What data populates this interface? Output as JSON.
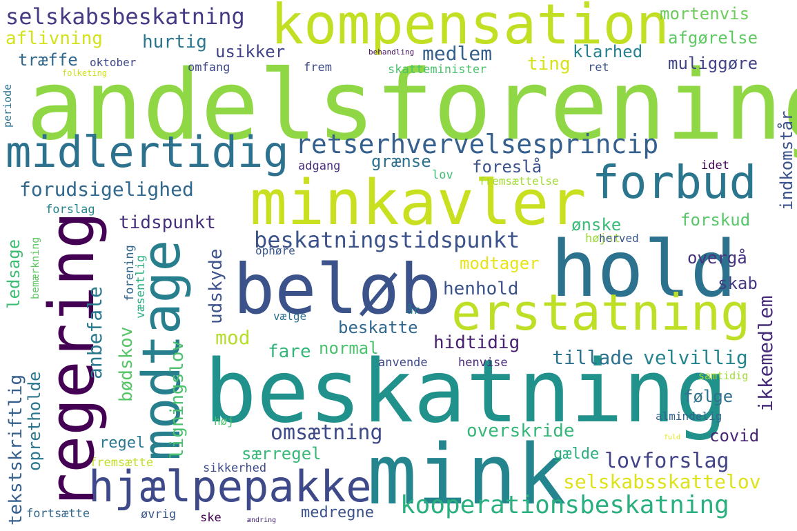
{
  "words": [
    {
      "text": "andelsforening",
      "color": "#8fd744"
    },
    {
      "text": "beskatning",
      "color": "#21918c"
    },
    {
      "text": "mink",
      "color": "#25858e"
    },
    {
      "text": "hold",
      "color": "#2c728e"
    },
    {
      "text": "beløb",
      "color": "#3b528b"
    },
    {
      "text": "minkavler",
      "color": "#c8e020"
    },
    {
      "text": "kompensation",
      "color": "#c2df23"
    },
    {
      "text": "erstatning",
      "color": "#bddf26"
    },
    {
      "text": "regering",
      "color": "#440154"
    },
    {
      "text": "modtage",
      "color": "#277f8e"
    },
    {
      "text": "hjælpepakke",
      "color": "#3e4989"
    },
    {
      "text": "forbud",
      "color": "#2a768e"
    },
    {
      "text": "midlertidig",
      "color": "#2c728e"
    },
    {
      "text": "kooperationsbeskatning",
      "color": "#2ab07f"
    },
    {
      "text": "retserhvervelsesprincip",
      "color": "#355f8d"
    },
    {
      "text": "beskatningstidspunkt",
      "color": "#3b528b"
    },
    {
      "text": "selskabsbeskatning",
      "color": "#443b84"
    },
    {
      "text": "forudsigelighed",
      "color": "#31688e"
    },
    {
      "text": "lovforslag",
      "color": "#414487"
    },
    {
      "text": "omsætning",
      "color": "#3e4989"
    },
    {
      "text": "selskabsskattelov",
      "color": "#dde318"
    },
    {
      "text": "overskride",
      "color": "#35b779"
    },
    {
      "text": "tidspunkt",
      "color": "#46307e"
    },
    {
      "text": "henhold",
      "color": "#3b528b"
    },
    {
      "text": "hidtidig",
      "color": "#482173"
    },
    {
      "text": "velvillig",
      "color": "#25858e"
    },
    {
      "text": "tillade",
      "color": "#2c728e"
    },
    {
      "text": "medlem",
      "color": "#355f8d"
    },
    {
      "text": "hurtig",
      "color": "#2a768e"
    },
    {
      "text": "aflivning",
      "color": "#d2e21b"
    },
    {
      "text": "træffe",
      "color": "#31688e"
    },
    {
      "text": "usikker",
      "color": "#404387"
    },
    {
      "text": "klarhed",
      "color": "#26818e"
    },
    {
      "text": "muliggøre",
      "color": "#414487"
    },
    {
      "text": "mortenvis",
      "color": "#6ccd5a"
    },
    {
      "text": "afgørelse",
      "color": "#5ec962"
    },
    {
      "text": "ting",
      "color": "#d8e219"
    },
    {
      "text": "grænse",
      "color": "#2c728e"
    },
    {
      "text": "foreslå",
      "color": "#3b528b"
    },
    {
      "text": "forskud",
      "color": "#56c667"
    },
    {
      "text": "ønske",
      "color": "#3aba76"
    },
    {
      "text": "modtager",
      "color": "#e7e419"
    },
    {
      "text": "overgå",
      "color": "#46337f"
    },
    {
      "text": "skab",
      "color": "#443a83"
    },
    {
      "text": "beskatte",
      "color": "#31688e"
    },
    {
      "text": "normal",
      "color": "#4ac16d"
    },
    {
      "text": "fare",
      "color": "#32b67a"
    },
    {
      "text": "mod",
      "color": "#b5de2b"
    },
    {
      "text": "følge",
      "color": "#2d718e"
    },
    {
      "text": "covid",
      "color": "#482475"
    },
    {
      "text": "særregel",
      "color": "#38b977"
    },
    {
      "text": "gælde",
      "color": "#2ab07f"
    },
    {
      "text": "regel",
      "color": "#2a788e"
    },
    {
      "text": "medregne",
      "color": "#3b528b"
    },
    {
      "text": "omfang",
      "color": "#3e4989"
    },
    {
      "text": "frem",
      "color": "#3e4989"
    },
    {
      "text": "ret",
      "color": "#3b528b"
    },
    {
      "text": "skatteminister",
      "color": "#4ac16d"
    },
    {
      "text": "oktober",
      "color": "#3e4989"
    },
    {
      "text": "behandling",
      "color": "#470d60"
    },
    {
      "text": "folketing",
      "color": "#d0e11c"
    },
    {
      "text": "adgang",
      "color": "#472f7d"
    },
    {
      "text": "idet",
      "color": "#440154"
    },
    {
      "text": "lov",
      "color": "#3fbc73"
    },
    {
      "text": "fremsættelse",
      "color": "#a2da37"
    },
    {
      "text": "forslag",
      "color": "#25838e"
    },
    {
      "text": "højst",
      "color": "#9dd93b"
    },
    {
      "text": "herved",
      "color": "#39568c"
    },
    {
      "text": "ophøre",
      "color": "#39568c"
    },
    {
      "text": "år",
      "color": "#2a768e"
    },
    {
      "text": "vælge",
      "color": "#2d708e"
    },
    {
      "text": "anvende",
      "color": "#3e4989"
    },
    {
      "text": "henvise",
      "color": "#482878"
    },
    {
      "text": "samtidig",
      "color": "#a0da39"
    },
    {
      "text": "almindelig",
      "color": "#33638d"
    },
    {
      "text": "høj",
      "color": "#4ac16d"
    },
    {
      "text": "fuld",
      "color": "#e5e419"
    },
    {
      "text": "fremsætte",
      "color": "#c0df25"
    },
    {
      "text": "sikkerhed",
      "color": "#3e4989"
    },
    {
      "text": "fortsætte",
      "color": "#31688e"
    },
    {
      "text": "øvrig",
      "color": "#39568c"
    },
    {
      "text": "ske",
      "color": "#440154"
    },
    {
      "text": "ændring",
      "color": "#482878"
    },
    {
      "text": "indkomstår",
      "color": "#3b528b"
    },
    {
      "text": "ikkemedlem",
      "color": "#472c7a"
    },
    {
      "text": "udskyde",
      "color": "#3b528b"
    },
    {
      "text": "ligningslov",
      "color": "#4ac16d"
    },
    {
      "text": "anbefale",
      "color": "#2a788e"
    },
    {
      "text": "bødskov",
      "color": "#56c667"
    },
    {
      "text": "tekstskriftlig",
      "color": "#355f8d"
    },
    {
      "text": "opretholde",
      "color": "#2a768e"
    },
    {
      "text": "ledsage",
      "color": "#3fbc73"
    },
    {
      "text": "forening",
      "color": "#31688e"
    },
    {
      "text": "væsentlig",
      "color": "#2ab07f"
    },
    {
      "text": "bemærkning",
      "color": "#5ec962"
    },
    {
      "text": "periode",
      "color": "#2d708e"
    }
  ]
}
